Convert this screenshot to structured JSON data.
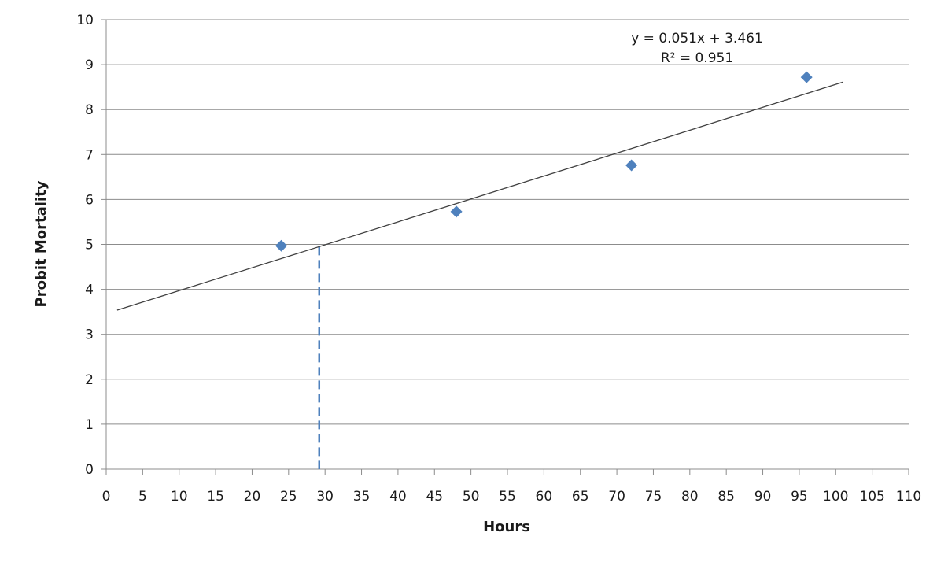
{
  "chart_data": {
    "type": "scatter",
    "title": "",
    "xlabel": "Hours",
    "ylabel": "Probit Mortality",
    "xlim": [
      0,
      110
    ],
    "ylim": [
      0,
      10
    ],
    "x_ticks": [
      0,
      5,
      10,
      15,
      20,
      25,
      30,
      35,
      40,
      45,
      50,
      55,
      60,
      65,
      70,
      75,
      80,
      85,
      90,
      95,
      100,
      105,
      110
    ],
    "y_ticks": [
      0,
      1,
      2,
      3,
      4,
      5,
      6,
      7,
      8,
      9,
      10
    ],
    "grid": "horizontal",
    "legend": "none",
    "series": [
      {
        "points": [
          {
            "x": 24,
            "y": 4.97
          },
          {
            "x": 48,
            "y": 5.73
          },
          {
            "x": 72,
            "y": 6.76
          },
          {
            "x": 96,
            "y": 8.72
          }
        ],
        "color": "#4f81bd",
        "marker": "diamond"
      }
    ],
    "trendline": {
      "slope": 0.051,
      "intercept": 3.461,
      "x_range": [
        1.5,
        101
      ],
      "equation_label": "y = 0.051x + 3.461",
      "r2_label": "R² = 0.951",
      "color": "#404040"
    },
    "reference_line": {
      "x": 29.2,
      "y_top": 4.95,
      "style": "dashed",
      "color": "#4f81bd"
    },
    "colors": {
      "grid": "#8c8c8c",
      "axis": "#8c8c8c"
    }
  }
}
